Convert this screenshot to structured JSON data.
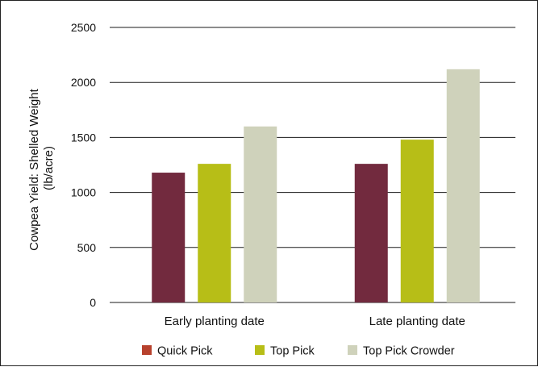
{
  "chart_data": {
    "type": "bar",
    "title": "",
    "xlabel": "",
    "ylabel_lines": [
      "Cowpea Yield: Shelled Weight",
      "(lb/acre)"
    ],
    "categories": [
      "Early planting date",
      "Late planting date"
    ],
    "series": [
      {
        "name": "Quick Pick",
        "values": [
          1180,
          1260
        ],
        "color": "#722a3e",
        "legend_color": "#b7412d"
      },
      {
        "name": "Top Pick",
        "values": [
          1260,
          1480
        ],
        "color": "#b7be17",
        "legend_color": "#b7be17"
      },
      {
        "name": "Top Pick Crowder",
        "values": [
          1600,
          2120
        ],
        "color": "#cfd2bb",
        "legend_color": "#cfd2bb"
      }
    ],
    "ylim": [
      0,
      2500
    ],
    "yticks": [
      0,
      500,
      1000,
      1500,
      2000,
      2500
    ],
    "grid": true,
    "legend_position": "bottom"
  }
}
